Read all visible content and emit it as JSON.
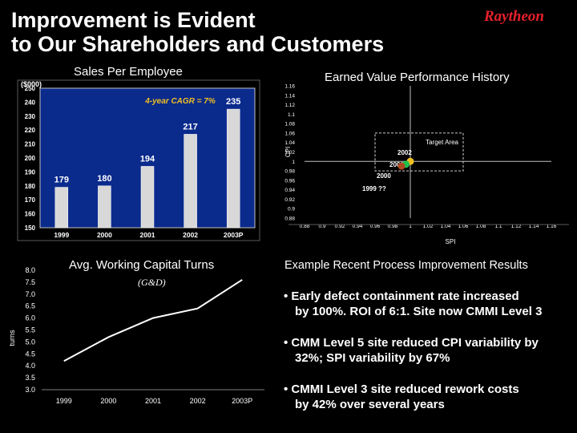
{
  "slide": {
    "title_line1": "Improvement is Evident",
    "title_line2": "to Our Shareholders and Customers",
    "logo": "Raytheon"
  },
  "sales_chart": {
    "header": "Sales Per Employee",
    "unit": "($000)",
    "annotation": "4-year CAGR = 7%"
  },
  "ev_chart": {
    "header": "Earned Value Performance History",
    "target_label": "Target Area",
    "xlabel": "SPI",
    "ylabel": "CPI"
  },
  "wc_chart": {
    "header": "Avg. Working Capital Turns",
    "subheader": "(G&D)",
    "ylabel": "turns"
  },
  "improvements": {
    "header": "Example Recent Process Improvement Results",
    "b1_l1": "• Early defect containment rate increased",
    "b1_l2": "by 100%. ROI of 6:1. Site now CMMI Level 3",
    "b2_l1": "• CMM Level 5 site reduced CPI variability by",
    "b2_l2": "32%; SPI variability by 67%",
    "b3_l1": "• CMMI Level 3 site reduced rework costs",
    "b3_l2": "by 42% over several years"
  },
  "chart_data": [
    {
      "type": "bar",
      "categories": [
        "1999",
        "2000",
        "2001",
        "2002",
        "2003P"
      ],
      "values": [
        179,
        180,
        194,
        217,
        235
      ],
      "data_labels": [
        "179",
        "180",
        "194",
        "217",
        "235"
      ],
      "yticks": [
        "150",
        "160",
        "170",
        "180",
        "190",
        "200",
        "210",
        "220",
        "230",
        "240",
        "250"
      ],
      "ylim": [
        150,
        250
      ],
      "bar_color": "#d8d8d8",
      "plot_color": "#0a2a8c"
    },
    {
      "type": "scatter",
      "xticks": [
        "0.88",
        "0.9",
        "0.92",
        "0.94",
        "0.96",
        "0.98",
        "1",
        "1.02",
        "1.04",
        "1.06",
        "1.08",
        "1.1",
        "1.12",
        "1.14",
        "1.16"
      ],
      "yticks": [
        "0.88",
        "0.9",
        "0.92",
        "0.94",
        "0.96",
        "0.98",
        "1",
        "1.02",
        "1.04",
        "1.06",
        "1.08",
        "1.1",
        "1.12",
        "1.14",
        "1.16"
      ],
      "xlim": [
        0.88,
        1.16
      ],
      "ylim": [
        0.88,
        1.16
      ],
      "target_area": {
        "x": [
          0.96,
          1.06
        ],
        "y": [
          0.98,
          1.06
        ]
      },
      "points": [
        {
          "label": "2002",
          "x": 1.0,
          "y": 1.0,
          "color": "#f0c020"
        },
        {
          "label": "2001",
          "x": 0.995,
          "y": 0.994,
          "color": "#22c050"
        },
        {
          "label": "2000",
          "x": 0.99,
          "y": 0.99,
          "color": "#b04a20"
        },
        {
          "label": "1999 ??",
          "x": null,
          "y": null,
          "color": ""
        }
      ]
    },
    {
      "type": "line",
      "categories": [
        "1999",
        "2000",
        "2001",
        "2002",
        "2003P"
      ],
      "values": [
        4.2,
        5.2,
        6.0,
        6.4,
        7.6
      ],
      "yticks": [
        "3.0",
        "3.5",
        "4.0",
        "4.5",
        "5.0",
        "5.5",
        "6.0",
        "6.5",
        "7.0",
        "7.5",
        "8.0"
      ],
      "ylim": [
        3.0,
        8.0
      ]
    }
  ]
}
